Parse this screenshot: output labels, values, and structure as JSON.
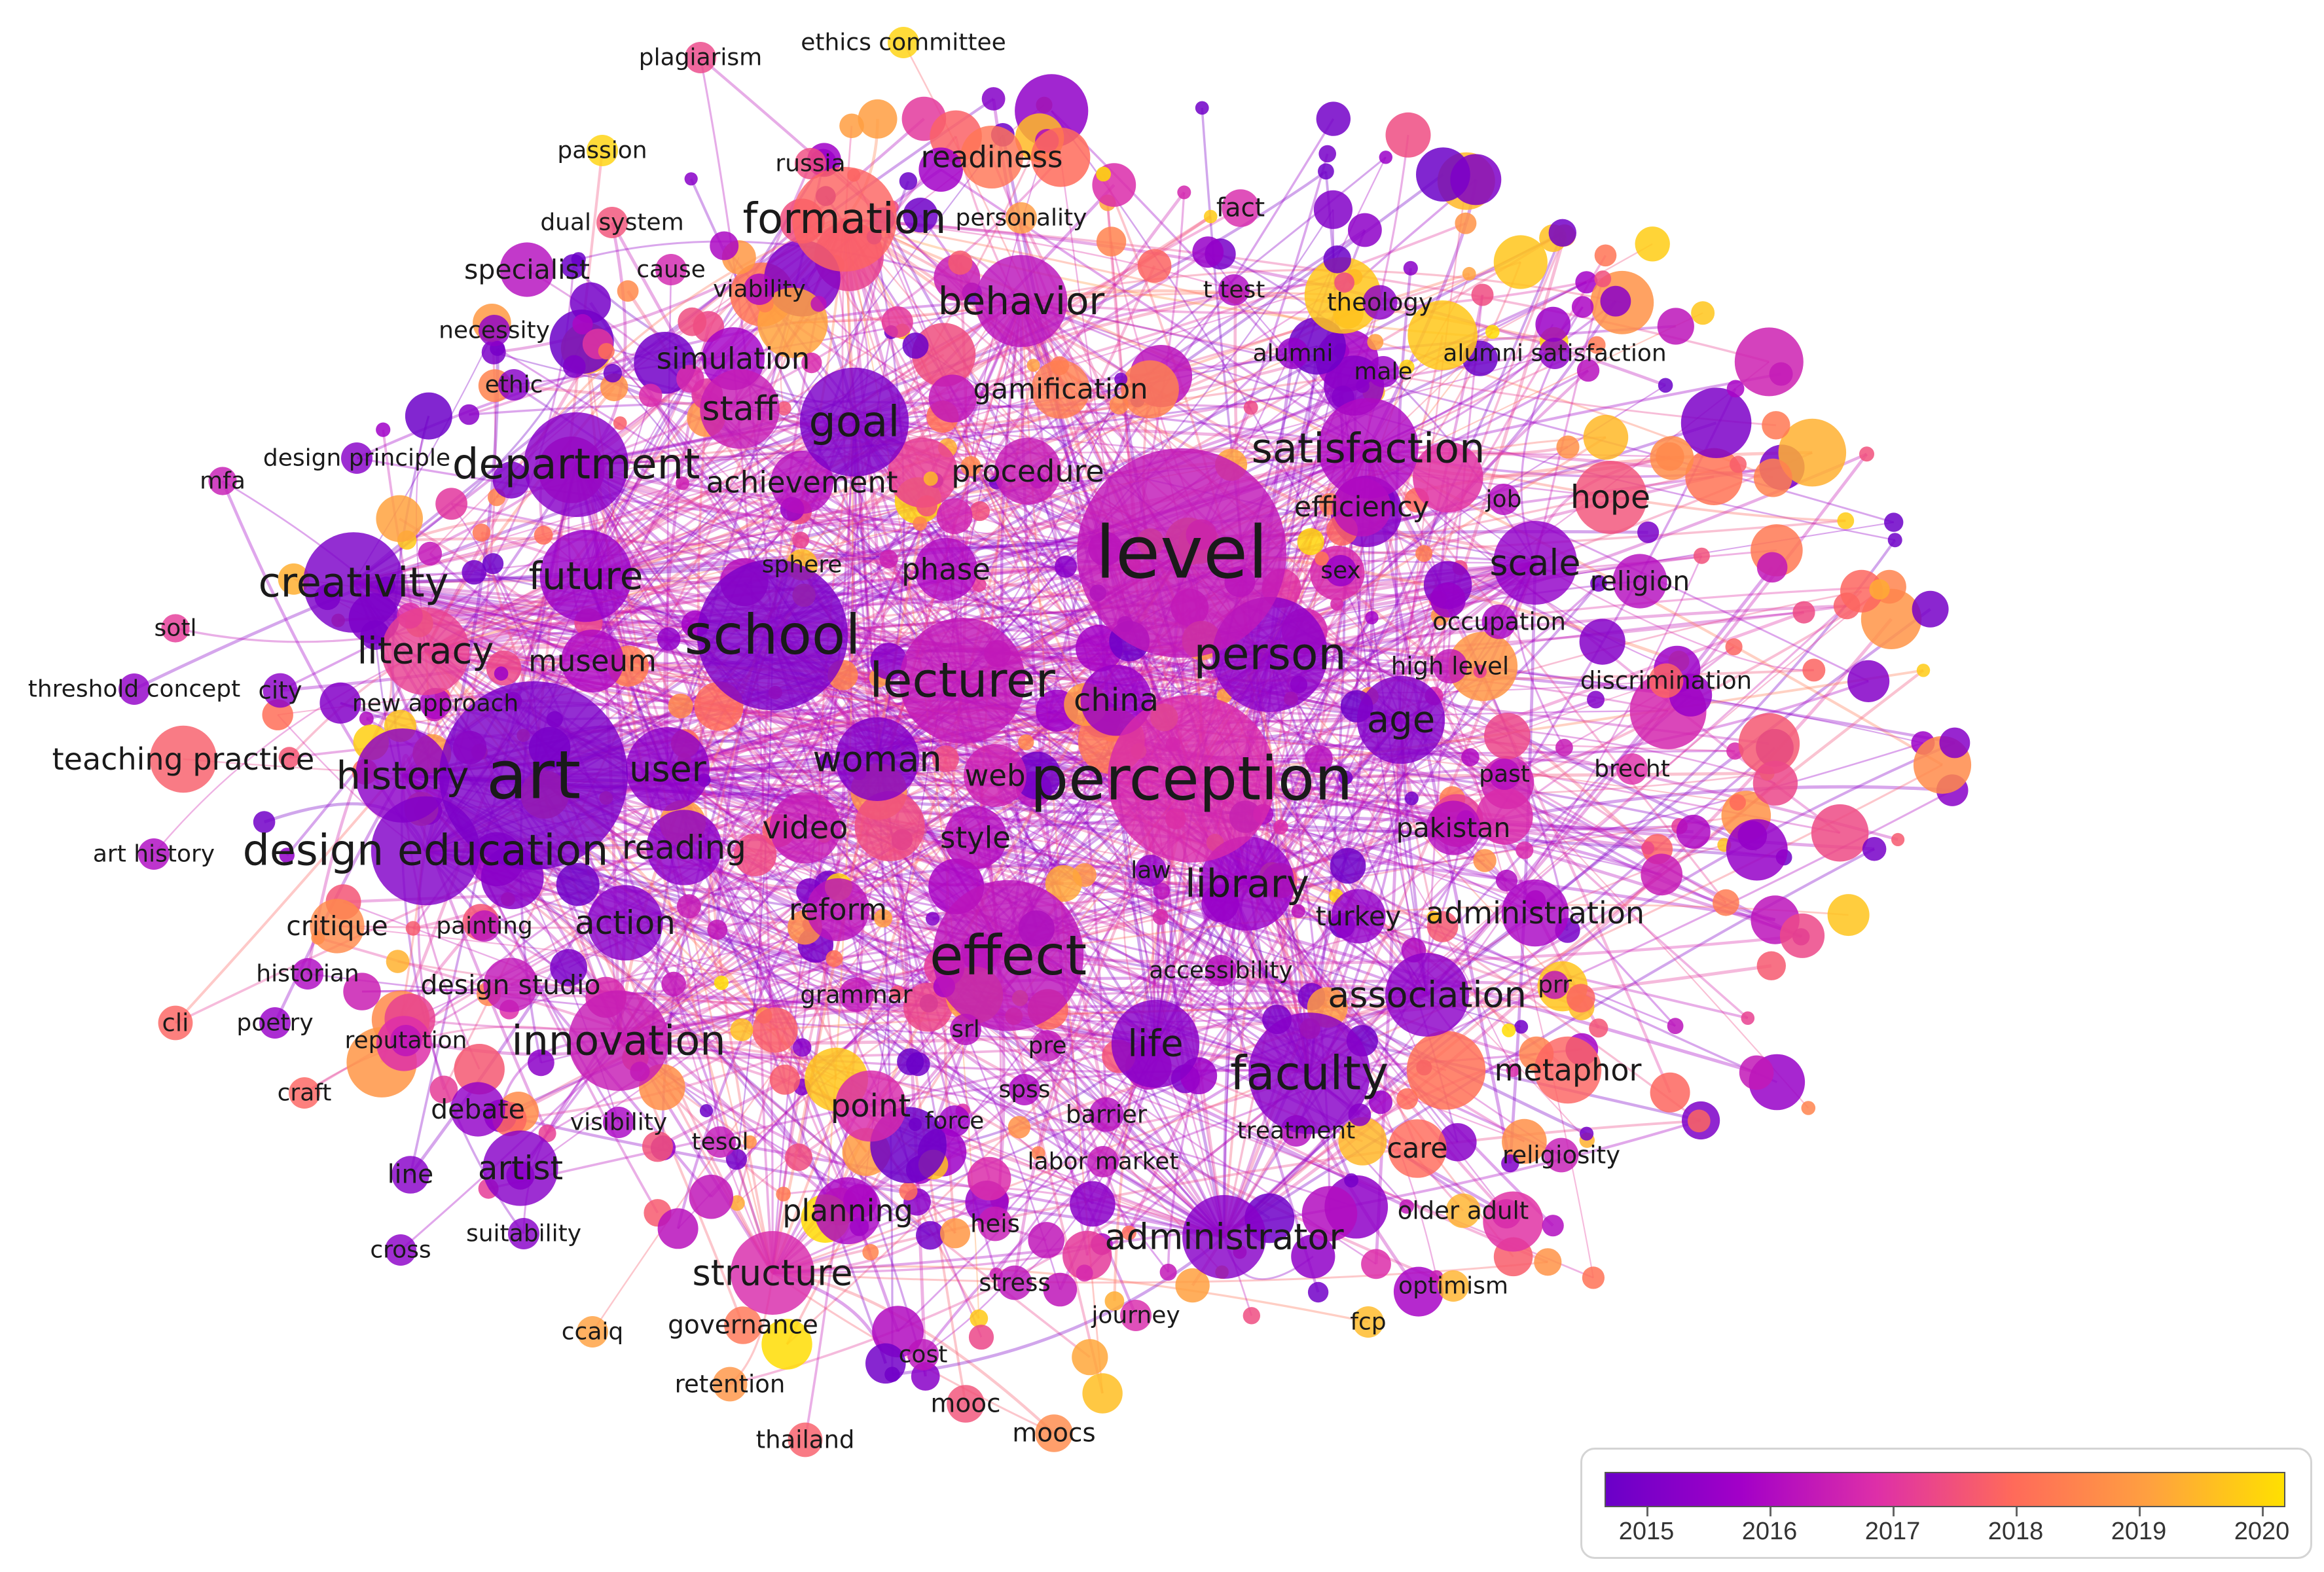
{
  "legend": {
    "years": [
      "2015",
      "2016",
      "2017",
      "2018",
      "2019",
      "2020"
    ],
    "colors": [
      "#6a00c8",
      "#a300c8",
      "#de2fa8",
      "#ff6a5a",
      "#ffa040",
      "#ffe000"
    ]
  },
  "keywords": [
    {
      "label": "level",
      "weight": 10,
      "year": 2016.5
    },
    {
      "label": "art",
      "weight": 9,
      "year": 2015.3
    },
    {
      "label": "perception",
      "weight": 8,
      "year": 2016.9
    },
    {
      "label": "school",
      "weight": 7.2,
      "year": 2015.3
    },
    {
      "label": "effect",
      "weight": 7.2,
      "year": 2016.4
    },
    {
      "label": "lecturer",
      "weight": 6,
      "year": 2016.5
    },
    {
      "label": "person",
      "weight": 5.5,
      "year": 2015.6
    },
    {
      "label": "faculty",
      "weight": 5.8,
      "year": 2015.5
    },
    {
      "label": "goal",
      "weight": 5.2,
      "year": 2015.3
    },
    {
      "label": "department",
      "weight": 5,
      "year": 2015.5
    },
    {
      "label": "formation",
      "weight": 5,
      "year": 2017.9
    },
    {
      "label": "design education",
      "weight": 5.2,
      "year": 2015.4
    },
    {
      "label": "satisfaction",
      "weight": 4.8,
      "year": 2016.2
    },
    {
      "label": "creativity",
      "weight": 4.8,
      "year": 2015.3
    },
    {
      "label": "behavior",
      "weight": 4.4,
      "year": 2016.4
    },
    {
      "label": "innovation",
      "weight": 4.8,
      "year": 2016.6
    },
    {
      "label": "history",
      "weight": 4.5,
      "year": 2015.6
    },
    {
      "label": "future",
      "weight": 4.4,
      "year": 2015.8
    },
    {
      "label": "literacy",
      "weight": 4.2,
      "year": 2017.3
    },
    {
      "label": "library",
      "weight": 4.5,
      "year": 2015.8
    },
    {
      "label": "age",
      "weight": 4.2,
      "year": 2015.4
    },
    {
      "label": "scale",
      "weight": 4,
      "year": 2015.7
    },
    {
      "label": "staff",
      "weight": 3.8,
      "year": 2016.6
    },
    {
      "label": "user",
      "weight": 4,
      "year": 2015.6
    },
    {
      "label": "woman",
      "weight": 4,
      "year": 2015.4
    },
    {
      "label": "association",
      "weight": 4,
      "year": 2015.6
    },
    {
      "label": "life",
      "weight": 4.2,
      "year": 2015.5
    },
    {
      "label": "administrator",
      "weight": 4,
      "year": 2015.5
    },
    {
      "label": "structure",
      "weight": 4,
      "year": 2016.9
    },
    {
      "label": "hope",
      "weight": 3.5,
      "year": 2017.6
    },
    {
      "label": "reading",
      "weight": 3.6,
      "year": 2015.6
    },
    {
      "label": "action",
      "weight": 3.6,
      "year": 2015.5
    },
    {
      "label": "artist",
      "weight": 3.6,
      "year": 2015.5
    },
    {
      "label": "china",
      "weight": 3.4,
      "year": 2015.8
    },
    {
      "label": "video",
      "weight": 3.4,
      "year": 2016.6
    },
    {
      "label": "point",
      "weight": 3.4,
      "year": 2016.9
    },
    {
      "label": "metaphor",
      "weight": 3.2,
      "year": 2017.9
    },
    {
      "label": "administration",
      "weight": 3.2,
      "year": 2016.1
    },
    {
      "label": "planning",
      "weight": 3.2,
      "year": 2016.1
    },
    {
      "label": "procedure",
      "weight": 3.2,
      "year": 2016.6
    },
    {
      "label": "teaching practice",
      "weight": 3.2,
      "year": 2017.8
    },
    {
      "label": "web",
      "weight": 3,
      "year": 2016.7
    },
    {
      "label": "style",
      "weight": 3,
      "year": 2016.3
    },
    {
      "label": "reform",
      "weight": 3,
      "year": 2016.4
    },
    {
      "label": "simulation",
      "weight": 3,
      "year": 2016
    },
    {
      "label": "achievement",
      "weight": 3,
      "year": 2016.3
    },
    {
      "label": "phase",
      "weight": 3,
      "year": 2016.2
    },
    {
      "label": "gamification",
      "weight": 2.8,
      "year": 2018.4
    },
    {
      "label": "efficiency",
      "weight": 2.8,
      "year": 2016.4
    },
    {
      "label": "readiness",
      "weight": 3,
      "year": 2018.2
    },
    {
      "label": "museum",
      "weight": 3,
      "year": 2016.2
    },
    {
      "label": "care",
      "weight": 2.8,
      "year": 2018
    },
    {
      "label": "debate",
      "weight": 2.6,
      "year": 2015.7
    },
    {
      "label": "design studio",
      "weight": 2.6,
      "year": 2016.5
    },
    {
      "label": "critique",
      "weight": 2.6,
      "year": 2018.6
    },
    {
      "label": "specialist",
      "weight": 2.6,
      "year": 2016.3
    },
    {
      "label": "pakistan",
      "weight": 2.6,
      "year": 2016.3
    },
    {
      "label": "turkey",
      "weight": 2.6,
      "year": 2015.7
    },
    {
      "label": "religion",
      "weight": 2.6,
      "year": 2016.3
    },
    {
      "label": "occupation",
      "weight": 2.2,
      "year": 2016.1
    },
    {
      "label": "high level",
      "weight": 2.2,
      "year": 2016.5
    },
    {
      "label": "discrimination",
      "weight": 2.2,
      "year": 2017.9
    },
    {
      "label": "religiosity",
      "weight": 2.2,
      "year": 2016.6
    },
    {
      "label": "older adult",
      "weight": 2.2,
      "year": 2019.3
    },
    {
      "label": "optimism",
      "weight": 2,
      "year": 2019.3
    },
    {
      "label": "fcp",
      "weight": 2,
      "year": 2019.4
    },
    {
      "label": "journey",
      "weight": 2,
      "year": 2016.9
    },
    {
      "label": "stress",
      "weight": 2.2,
      "year": 2016.4
    },
    {
      "label": "heis",
      "weight": 2.2,
      "year": 2016.6
    },
    {
      "label": "cost",
      "weight": 2,
      "year": 2016.4
    },
    {
      "label": "mooc",
      "weight": 2.4,
      "year": 2017.6
    },
    {
      "label": "moocs",
      "weight": 2.4,
      "year": 2018.6
    },
    {
      "label": "retention",
      "weight": 2.2,
      "year": 2018.8
    },
    {
      "label": "thailand",
      "weight": 2.2,
      "year": 2017.8
    },
    {
      "label": "governance",
      "weight": 2.4,
      "year": 2018.2
    },
    {
      "label": "ccaiq",
      "weight": 2,
      "year": 2019
    },
    {
      "label": "cross",
      "weight": 2,
      "year": 2015.6
    },
    {
      "label": "suitability",
      "weight": 2,
      "year": 2015.5
    },
    {
      "label": "line",
      "weight": 2.4,
      "year": 2015.5
    },
    {
      "label": "visibility",
      "weight": 2,
      "year": 2016.1
    },
    {
      "label": "tesol",
      "weight": 2,
      "year": 2016.5
    },
    {
      "label": "craft",
      "weight": 2,
      "year": 2017.9
    },
    {
      "label": "reputation",
      "weight": 2,
      "year": 2016.4
    },
    {
      "label": "poetry",
      "weight": 2,
      "year": 2015.8
    },
    {
      "label": "cli",
      "weight": 2.2,
      "year": 2017.9
    },
    {
      "label": "historian",
      "weight": 2,
      "year": 2016.2
    },
    {
      "label": "painting",
      "weight": 2,
      "year": 2016.4
    },
    {
      "label": "art history",
      "weight": 2,
      "year": 2016.2
    },
    {
      "label": "threshold concept",
      "weight": 2,
      "year": 2015.7
    },
    {
      "label": "city",
      "weight": 2.2,
      "year": 2015.6
    },
    {
      "label": "sotl",
      "weight": 1.8,
      "year": 2017.2
    },
    {
      "label": "new approach",
      "weight": 2,
      "year": 2016.1
    },
    {
      "label": "mfa",
      "weight": 1.8,
      "year": 2016.6
    },
    {
      "label": "design principle",
      "weight": 2,
      "year": 2015.5
    },
    {
      "label": "ethic",
      "weight": 2,
      "year": 2015.5
    },
    {
      "label": "necessity",
      "weight": 2,
      "year": 2015.6
    },
    {
      "label": "dual system",
      "weight": 2,
      "year": 2017.6
    },
    {
      "label": "cause",
      "weight": 2,
      "year": 2016.8
    },
    {
      "label": "viability",
      "weight": 2,
      "year": 2016.2
    },
    {
      "label": "passion",
      "weight": 2,
      "year": 2019.8
    },
    {
      "label": "russia",
      "weight": 2,
      "year": 2017.5
    },
    {
      "label": "plagiarism",
      "weight": 2,
      "year": 2017.4
    },
    {
      "label": "ethics committee",
      "weight": 2,
      "year": 2019.8
    },
    {
      "label": "personality",
      "weight": 2,
      "year": 2018.9
    },
    {
      "label": "fact",
      "weight": 2.4,
      "year": 2016.9
    },
    {
      "label": "t test",
      "weight": 2,
      "year": 2016.2
    },
    {
      "label": "theology",
      "weight": 2.2,
      "year": 2015.6
    },
    {
      "label": "alumni",
      "weight": 2,
      "year": 2015.7
    },
    {
      "label": "male",
      "weight": 2,
      "year": 2015.8
    },
    {
      "label": "alumni satisfaction",
      "weight": 2,
      "year": 2015.6
    },
    {
      "label": "job",
      "weight": 2,
      "year": 2016.3
    },
    {
      "label": "sex",
      "weight": 2,
      "year": 2015.8
    },
    {
      "label": "sphere",
      "weight": 2,
      "year": 2019.5
    },
    {
      "label": "past",
      "weight": 2,
      "year": 2016.3
    },
    {
      "label": "brecht",
      "weight": 2,
      "year": 2017
    },
    {
      "label": "law",
      "weight": 2,
      "year": 2015.7
    },
    {
      "label": "accessibility",
      "weight": 2,
      "year": 2016.3
    },
    {
      "label": "prr",
      "weight": 1.8,
      "year": 2016.4
    },
    {
      "label": "grammar",
      "weight": 2.2,
      "year": 2016.5
    },
    {
      "label": "srl",
      "weight": 2,
      "year": 2016.3
    },
    {
      "label": "pre",
      "weight": 2,
      "year": 2016.5
    },
    {
      "label": "spss",
      "weight": 2,
      "year": 2016.2
    },
    {
      "label": "force",
      "weight": 2,
      "year": 2015.9
    },
    {
      "label": "barrier",
      "weight": 2.2,
      "year": 2016.3
    },
    {
      "label": "treatment",
      "weight": 2,
      "year": 2016.3
    },
    {
      "label": "labor market",
      "weight": 2,
      "year": 2016.5
    }
  ]
}
